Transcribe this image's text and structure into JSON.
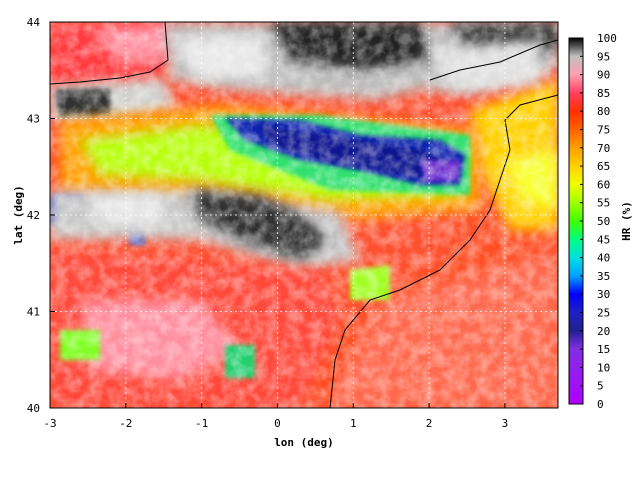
{
  "chart_data": {
    "type": "heatmap",
    "title": "",
    "xlabel": "lon (deg)",
    "ylabel": "lat (deg)",
    "xlim": [
      -3,
      3.7
    ],
    "ylim": [
      40,
      44
    ],
    "x_ticks": [
      {
        "value": -3,
        "label": "-3"
      },
      {
        "value": -2,
        "label": "-2"
      },
      {
        "value": -1,
        "label": "-1"
      },
      {
        "value": 0,
        "label": "0"
      },
      {
        "value": 1,
        "label": "1"
      },
      {
        "value": 2,
        "label": "2"
      },
      {
        "value": 3,
        "label": "3"
      }
    ],
    "y_ticks": [
      {
        "value": 40,
        "label": "40"
      },
      {
        "value": 41,
        "label": "41"
      },
      {
        "value": 42,
        "label": "42"
      },
      {
        "value": 43,
        "label": "43"
      },
      {
        "value": 44,
        "label": "44"
      }
    ],
    "grid": true,
    "colorbar": {
      "label": "HR (%)",
      "range": [
        0,
        100
      ],
      "ticks": [
        "0",
        "5",
        "10",
        "15",
        "20",
        "25",
        "30",
        "35",
        "40",
        "45",
        "50",
        "55",
        "60",
        "65",
        "70",
        "75",
        "80",
        "85",
        "90",
        "95",
        "100"
      ],
      "stops": [
        {
          "value": 0,
          "color": "#b000ff"
        },
        {
          "value": 15,
          "color": "#8030e0"
        },
        {
          "value": 20,
          "color": "#202090"
        },
        {
          "value": 25,
          "color": "#2020c0"
        },
        {
          "value": 30,
          "color": "#0000ff"
        },
        {
          "value": 35,
          "color": "#00a0ff"
        },
        {
          "value": 40,
          "color": "#00e0e0"
        },
        {
          "value": 45,
          "color": "#00ff80"
        },
        {
          "value": 50,
          "color": "#40ff00"
        },
        {
          "value": 55,
          "color": "#a0ff00"
        },
        {
          "value": 60,
          "color": "#f0ff00"
        },
        {
          "value": 65,
          "color": "#ffd000"
        },
        {
          "value": 70,
          "color": "#ffa000"
        },
        {
          "value": 75,
          "color": "#ff6000"
        },
        {
          "value": 80,
          "color": "#ff3000"
        },
        {
          "value": 85,
          "color": "#ff4060"
        },
        {
          "value": 90,
          "color": "#ffa0b0"
        },
        {
          "value": 95,
          "color": "#c0c0c0"
        },
        {
          "value": 100,
          "color": "#000000"
        }
      ]
    }
  }
}
